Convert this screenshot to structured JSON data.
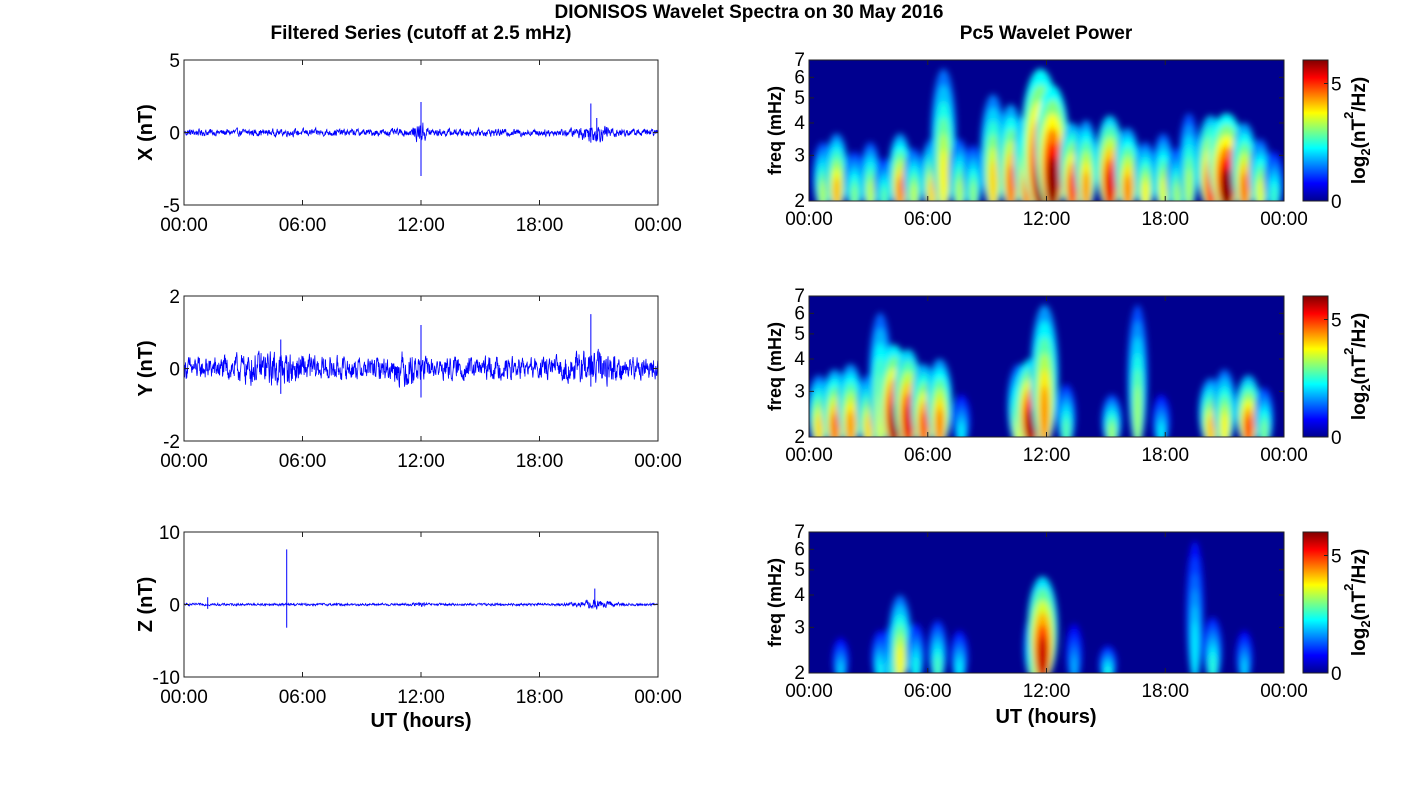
{
  "figure": {
    "title": "DIONISOS Wavelet Spectra on 30 May 2016",
    "left_column_title": "Filtered Series (cutoff at 2.5 mHz)",
    "right_column_title": "Pc5 Wavelet Power",
    "x_axis_label": "UT (hours)",
    "colorbar_label_parts": [
      "log",
      "2",
      "(nT",
      "2",
      "/Hz)"
    ]
  },
  "colors": {
    "series_line": "#0000ff",
    "axis": "#222222",
    "heatmap_background": "#00008f",
    "colormap": "jet"
  },
  "chart_data": [
    {
      "type": "line",
      "panel": "filtered-series-x",
      "ylabel": "X (nT)",
      "ylim": [
        -5,
        5
      ],
      "yticks": [
        -5,
        0,
        5
      ],
      "xlim_hours": [
        0,
        24
      ],
      "xtick_labels": [
        "00:00",
        "06:00",
        "12:00",
        "18:00",
        "00:00"
      ],
      "series": [
        {
          "noise_amplitude_nT": 0.18,
          "spikes": [
            {
              "x_hours": 12.0,
              "y_min": -3.0,
              "y_max": 2.1
            },
            {
              "x_hours": 20.6,
              "y_min": -0.7,
              "y_max": 2.0
            },
            {
              "x_hours": 20.9,
              "y_min": -0.5,
              "y_max": 1.0
            }
          ],
          "envelope_bursts": [
            {
              "x_hours": 12.0,
              "width_hours": 0.35,
              "gain": 3.0
            },
            {
              "x_hours": 20.8,
              "width_hours": 0.9,
              "gain": 2.5
            }
          ]
        }
      ]
    },
    {
      "type": "line",
      "panel": "filtered-series-y",
      "ylabel": "Y (nT)",
      "ylim": [
        -2,
        2
      ],
      "yticks": [
        -2,
        0,
        2
      ],
      "xlim_hours": [
        0,
        24
      ],
      "xtick_labels": [
        "00:00",
        "06:00",
        "12:00",
        "18:00",
        "00:00"
      ],
      "series": [
        {
          "noise_amplitude_nT": 0.22,
          "spikes": [
            {
              "x_hours": 12.0,
              "y_min": -0.8,
              "y_max": 1.2
            },
            {
              "x_hours": 20.6,
              "y_min": -0.5,
              "y_max": 1.5
            },
            {
              "x_hours": 4.9,
              "y_min": -0.7,
              "y_max": 0.8
            }
          ],
          "envelope_bursts": [
            {
              "x_hours": 4.5,
              "width_hours": 2.0,
              "gain": 1.6
            },
            {
              "x_hours": 11.3,
              "width_hours": 0.6,
              "gain": 1.7
            },
            {
              "x_hours": 20.7,
              "width_hours": 1.2,
              "gain": 1.6
            }
          ]
        }
      ]
    },
    {
      "type": "line",
      "panel": "filtered-series-z",
      "ylabel": "Z (nT)",
      "ylim": [
        -10,
        10
      ],
      "yticks": [
        -10,
        0,
        10
      ],
      "xlim_hours": [
        0,
        24
      ],
      "xtick_labels": [
        "00:00",
        "06:00",
        "12:00",
        "18:00",
        "00:00"
      ],
      "series": [
        {
          "noise_amplitude_nT": 0.12,
          "spikes": [
            {
              "x_hours": 5.2,
              "y_min": -3.2,
              "y_max": 7.6
            },
            {
              "x_hours": 1.2,
              "y_min": -0.6,
              "y_max": 1.0
            },
            {
              "x_hours": 20.8,
              "y_min": -0.4,
              "y_max": 2.2
            }
          ],
          "envelope_bursts": [
            {
              "x_hours": 20.8,
              "width_hours": 0.9,
              "gain": 4.0
            },
            {
              "x_hours": 11.9,
              "width_hours": 0.3,
              "gain": 2.0
            }
          ]
        }
      ]
    },
    {
      "type": "heatmap",
      "panel": "wavelet-power-x",
      "ylabel": "freq (mHz)",
      "ylim_mHz": [
        2,
        7
      ],
      "yscale": "log",
      "yticks": [
        2,
        3,
        4,
        5,
        6,
        7
      ],
      "xlim_hours": [
        0,
        24
      ],
      "xtick_labels": [
        "00:00",
        "06:00",
        "12:00",
        "18:00",
        "00:00"
      ],
      "colorbar": {
        "range": [
          0,
          6
        ],
        "ticks": [
          0,
          5
        ]
      },
      "blobs": [
        {
          "t": 0.7,
          "f_top": 3.5,
          "peak": 3.3,
          "w": 0.16
        },
        {
          "t": 1.4,
          "f_top": 3.8,
          "peak": 4.2,
          "w": 0.18
        },
        {
          "t": 2.3,
          "f_top": 3.2,
          "peak": 3.0,
          "w": 0.16
        },
        {
          "t": 3.1,
          "f_top": 3.5,
          "peak": 3.4,
          "w": 0.16
        },
        {
          "t": 3.8,
          "f_top": 3.0,
          "peak": 2.8,
          "w": 0.15
        },
        {
          "t": 4.6,
          "f_top": 3.8,
          "peak": 4.5,
          "w": 0.18
        },
        {
          "t": 5.3,
          "f_top": 3.3,
          "peak": 3.4,
          "w": 0.16
        },
        {
          "t": 6.2,
          "f_top": 3.6,
          "peak": 4.0,
          "w": 0.17
        },
        {
          "t": 6.8,
          "f_top": 7.0,
          "peak": 3.8,
          "w": 0.2
        },
        {
          "t": 7.6,
          "f_top": 3.6,
          "peak": 3.3,
          "w": 0.16
        },
        {
          "t": 8.3,
          "f_top": 3.4,
          "peak": 3.1,
          "w": 0.15
        },
        {
          "t": 9.3,
          "f_top": 5.5,
          "peak": 4.0,
          "w": 0.2
        },
        {
          "t": 10.2,
          "f_top": 5.0,
          "peak": 4.6,
          "w": 0.2
        },
        {
          "t": 11.0,
          "f_top": 4.6,
          "peak": 4.5,
          "w": 0.2
        },
        {
          "t": 11.7,
          "f_top": 7.0,
          "peak": 6.0,
          "w": 0.3
        },
        {
          "t": 12.3,
          "f_top": 6.0,
          "peak": 6.0,
          "w": 0.26
        },
        {
          "t": 13.3,
          "f_top": 4.2,
          "peak": 4.9,
          "w": 0.2
        },
        {
          "t": 14.0,
          "f_top": 4.3,
          "peak": 4.4,
          "w": 0.18
        },
        {
          "t": 15.2,
          "f_top": 4.5,
          "peak": 5.4,
          "w": 0.22
        },
        {
          "t": 16.1,
          "f_top": 4.0,
          "peak": 4.5,
          "w": 0.2
        },
        {
          "t": 17.0,
          "f_top": 3.5,
          "peak": 3.8,
          "w": 0.17
        },
        {
          "t": 17.9,
          "f_top": 3.8,
          "peak": 3.6,
          "w": 0.17
        },
        {
          "t": 18.6,
          "f_top": 3.3,
          "peak": 3.2,
          "w": 0.16
        },
        {
          "t": 19.2,
          "f_top": 4.6,
          "peak": 3.3,
          "w": 0.16
        },
        {
          "t": 20.3,
          "f_top": 4.5,
          "peak": 5.1,
          "w": 0.22
        },
        {
          "t": 21.1,
          "f_top": 4.6,
          "peak": 6.0,
          "w": 0.28
        },
        {
          "t": 22.0,
          "f_top": 4.2,
          "peak": 4.6,
          "w": 0.2
        },
        {
          "t": 22.8,
          "f_top": 3.6,
          "peak": 3.6,
          "w": 0.17
        },
        {
          "t": 23.5,
          "f_top": 3.2,
          "peak": 2.6,
          "w": 0.15
        }
      ]
    },
    {
      "type": "heatmap",
      "panel": "wavelet-power-y",
      "ylabel": "freq (mHz)",
      "ylim_mHz": [
        2,
        7
      ],
      "yscale": "log",
      "yticks": [
        2,
        3,
        4,
        5,
        6,
        7
      ],
      "xlim_hours": [
        0,
        24
      ],
      "xtick_labels": [
        "00:00",
        "06:00",
        "12:00",
        "18:00",
        "00:00"
      ],
      "colorbar": {
        "range": [
          0,
          6
        ],
        "ticks": [
          0,
          5
        ]
      },
      "blobs": [
        {
          "t": 0.5,
          "f_top": 3.6,
          "peak": 4.0,
          "w": 0.18
        },
        {
          "t": 1.3,
          "f_top": 3.8,
          "peak": 4.6,
          "w": 0.2
        },
        {
          "t": 2.1,
          "f_top": 4.0,
          "peak": 4.4,
          "w": 0.2
        },
        {
          "t": 3.0,
          "f_top": 3.6,
          "peak": 4.0,
          "w": 0.18
        },
        {
          "t": 3.6,
          "f_top": 6.5,
          "peak": 3.6,
          "w": 0.18
        },
        {
          "t": 4.3,
          "f_top": 4.8,
          "peak": 5.8,
          "w": 0.24
        },
        {
          "t": 5.0,
          "f_top": 4.6,
          "peak": 5.4,
          "w": 0.22
        },
        {
          "t": 5.8,
          "f_top": 4.0,
          "peak": 4.8,
          "w": 0.2
        },
        {
          "t": 6.6,
          "f_top": 4.2,
          "peak": 4.5,
          "w": 0.2
        },
        {
          "t": 7.7,
          "f_top": 3.0,
          "peak": 2.2,
          "w": 0.14
        },
        {
          "t": 10.6,
          "f_top": 4.0,
          "peak": 3.6,
          "w": 0.18
        },
        {
          "t": 11.2,
          "f_top": 4.2,
          "peak": 5.8,
          "w": 0.24
        },
        {
          "t": 11.9,
          "f_top": 7.0,
          "peak": 4.4,
          "w": 0.22
        },
        {
          "t": 13.0,
          "f_top": 3.3,
          "peak": 2.8,
          "w": 0.15
        },
        {
          "t": 15.3,
          "f_top": 3.0,
          "peak": 3.2,
          "w": 0.16
        },
        {
          "t": 16.6,
          "f_top": 7.0,
          "peak": 3.2,
          "w": 0.16
        },
        {
          "t": 17.8,
          "f_top": 3.0,
          "peak": 2.2,
          "w": 0.14
        },
        {
          "t": 20.3,
          "f_top": 3.5,
          "peak": 4.1,
          "w": 0.19
        },
        {
          "t": 21.0,
          "f_top": 3.8,
          "peak": 3.8,
          "w": 0.18
        },
        {
          "t": 22.2,
          "f_top": 3.6,
          "peak": 4.9,
          "w": 0.2
        },
        {
          "t": 23.0,
          "f_top": 3.2,
          "peak": 3.0,
          "w": 0.15
        }
      ]
    },
    {
      "type": "heatmap",
      "panel": "wavelet-power-z",
      "ylabel": "freq (mHz)",
      "ylim_mHz": [
        2,
        7
      ],
      "yscale": "log",
      "yticks": [
        2,
        3,
        4,
        5,
        6,
        7
      ],
      "xlim_hours": [
        0,
        24
      ],
      "xtick_labels": [
        "00:00",
        "06:00",
        "12:00",
        "18:00",
        "00:00"
      ],
      "colorbar": {
        "range": [
          0,
          6
        ],
        "ticks": [
          0,
          5
        ]
      },
      "blobs": [
        {
          "t": 1.6,
          "f_top": 2.8,
          "peak": 2.0,
          "w": 0.13
        },
        {
          "t": 3.6,
          "f_top": 3.0,
          "peak": 2.3,
          "w": 0.14
        },
        {
          "t": 4.2,
          "f_top": 3.2,
          "peak": 2.6,
          "w": 0.15
        },
        {
          "t": 4.6,
          "f_top": 4.2,
          "peak": 3.8,
          "w": 0.18
        },
        {
          "t": 5.4,
          "f_top": 3.2,
          "peak": 2.4,
          "w": 0.14
        },
        {
          "t": 6.5,
          "f_top": 3.3,
          "peak": 2.7,
          "w": 0.15
        },
        {
          "t": 7.6,
          "f_top": 3.0,
          "peak": 2.2,
          "w": 0.14
        },
        {
          "t": 11.4,
          "f_top": 3.6,
          "peak": 3.4,
          "w": 0.17
        },
        {
          "t": 11.8,
          "f_top": 5.0,
          "peak": 5.6,
          "w": 0.24
        },
        {
          "t": 13.4,
          "f_top": 3.2,
          "peak": 1.8,
          "w": 0.13
        },
        {
          "t": 15.1,
          "f_top": 2.6,
          "peak": 2.4,
          "w": 0.14
        },
        {
          "t": 19.5,
          "f_top": 7.0,
          "peak": 2.2,
          "w": 0.14
        },
        {
          "t": 20.4,
          "f_top": 3.4,
          "peak": 2.5,
          "w": 0.15
        },
        {
          "t": 22.0,
          "f_top": 3.0,
          "peak": 2.0,
          "w": 0.13
        }
      ]
    }
  ]
}
